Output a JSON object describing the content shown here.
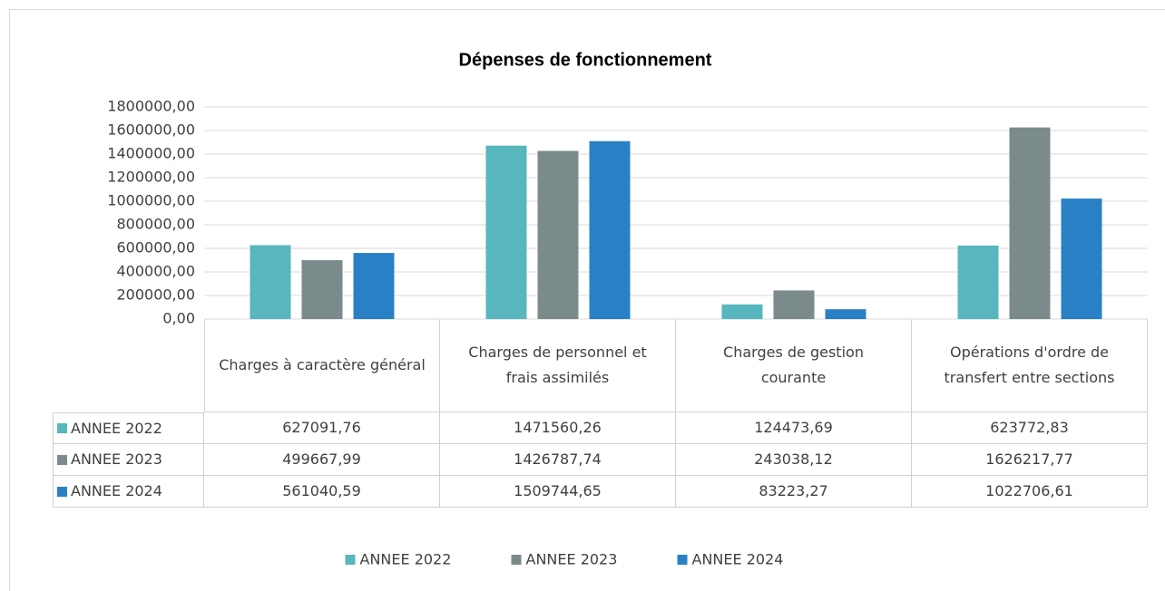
{
  "chart_data": {
    "type": "bar",
    "title": "Dépenses de fonctionnement",
    "categories": [
      "Charges à caractère général",
      "Charges de personnel et frais assimilés",
      "Charges de gestion courante",
      "Opérations d'ordre de transfert entre sections"
    ],
    "series": [
      {
        "name": "ANNEE 2022",
        "color": "#58b6be",
        "values": [
          627091.76,
          1471560.26,
          124473.69,
          623772.83
        ],
        "value_labels": [
          "627091,76",
          "1471560,26",
          "124473,69",
          "623772,83"
        ]
      },
      {
        "name": "ANNEE 2023",
        "color": "#7b8b8b",
        "values": [
          499667.99,
          1426787.74,
          243038.12,
          1626217.77
        ],
        "value_labels": [
          "499667,99",
          "1426787,74",
          "243038,12",
          "1626217,77"
        ]
      },
      {
        "name": "ANNEE 2024",
        "color": "#2a80c5",
        "values": [
          561040.59,
          1509744.65,
          83223.27,
          1022706.61
        ],
        "value_labels": [
          "561040,59",
          "1509744,65",
          "83223,27",
          "1022706,61"
        ]
      }
    ],
    "ylim": [
      0,
      1800000
    ],
    "yticks": [
      {
        "value": 0,
        "label": "0,00"
      },
      {
        "value": 200000,
        "label": "200000,00"
      },
      {
        "value": 400000,
        "label": "400000,00"
      },
      {
        "value": 600000,
        "label": "600000,00"
      },
      {
        "value": 800000,
        "label": "800000,00"
      },
      {
        "value": 1000000,
        "label": "1000000,00"
      },
      {
        "value": 1200000,
        "label": "1200000,00"
      },
      {
        "value": 1400000,
        "label": "1400000,00"
      },
      {
        "value": 1600000,
        "label": "1600000,00"
      },
      {
        "value": 1800000,
        "label": "1800000,00"
      }
    ],
    "grid": true,
    "legend": "bottom"
  }
}
